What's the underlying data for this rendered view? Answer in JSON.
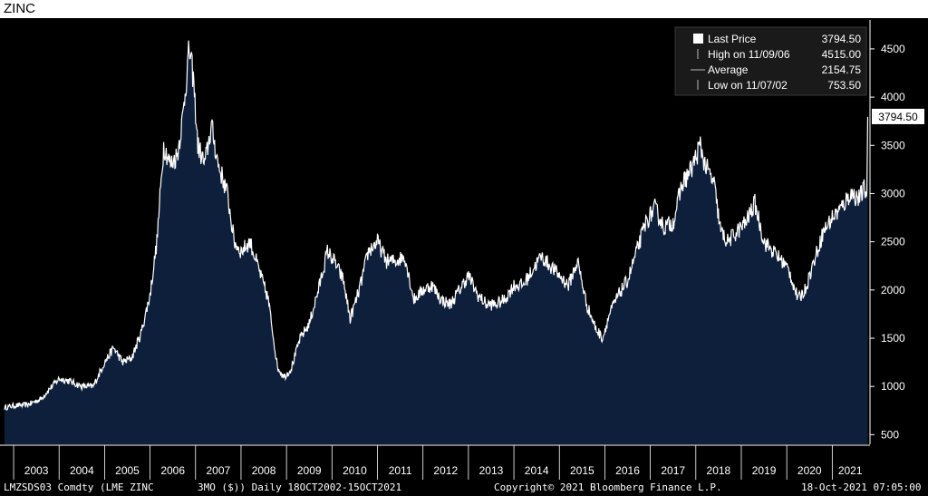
{
  "title": "ZINC",
  "chart_data": {
    "type": "area",
    "title": "ZINC",
    "x_range": [
      "2002-10-18",
      "2021-10-15"
    ],
    "ylim": [
      400,
      4800
    ],
    "y_ticks": [
      500,
      1000,
      1500,
      2000,
      2500,
      3000,
      3500,
      4000,
      4500
    ],
    "x_ticks": [
      "2003",
      "2004",
      "2005",
      "2006",
      "2007",
      "2008",
      "2009",
      "2010",
      "2011",
      "2012",
      "2013",
      "2014",
      "2015",
      "2016",
      "2017",
      "2018",
      "2019",
      "2020",
      "2021"
    ],
    "grid": false,
    "legend_position": "top-right",
    "legend": [
      {
        "label": "Last Price",
        "value": "3794.50"
      },
      {
        "label": "High on 11/09/06",
        "value": "4515.00"
      },
      {
        "label": "Average",
        "value": "2154.75"
      },
      {
        "label": "Low on 11/07/02",
        "value": "753.50"
      }
    ],
    "last_price_label": "3794.50",
    "series": [
      {
        "points": [
          [
            2002.8,
            780
          ],
          [
            2003.0,
            800
          ],
          [
            2003.3,
            810
          ],
          [
            2003.6,
            870
          ],
          [
            2003.8,
            980
          ],
          [
            2004.0,
            1080
          ],
          [
            2004.2,
            1060
          ],
          [
            2004.5,
            1000
          ],
          [
            2004.75,
            1000
          ],
          [
            2005.0,
            1250
          ],
          [
            2005.2,
            1400
          ],
          [
            2005.4,
            1250
          ],
          [
            2005.6,
            1300
          ],
          [
            2005.8,
            1550
          ],
          [
            2006.0,
            1950
          ],
          [
            2006.15,
            2500
          ],
          [
            2006.3,
            3500
          ],
          [
            2006.45,
            3300
          ],
          [
            2006.6,
            3400
          ],
          [
            2006.72,
            3800
          ],
          [
            2006.86,
            4500
          ],
          [
            2006.95,
            4200
          ],
          [
            2007.05,
            3500
          ],
          [
            2007.2,
            3300
          ],
          [
            2007.35,
            3700
          ],
          [
            2007.5,
            3300
          ],
          [
            2007.7,
            3000
          ],
          [
            2007.85,
            2500
          ],
          [
            2008.0,
            2400
          ],
          [
            2008.2,
            2500
          ],
          [
            2008.4,
            2200
          ],
          [
            2008.6,
            1900
          ],
          [
            2008.8,
            1200
          ],
          [
            2008.95,
            1100
          ],
          [
            2009.1,
            1180
          ],
          [
            2009.3,
            1500
          ],
          [
            2009.5,
            1650
          ],
          [
            2009.7,
            2000
          ],
          [
            2009.9,
            2400
          ],
          [
            2010.05,
            2300
          ],
          [
            2010.25,
            2100
          ],
          [
            2010.4,
            1700
          ],
          [
            2010.6,
            2000
          ],
          [
            2010.8,
            2400
          ],
          [
            2011.0,
            2500
          ],
          [
            2011.2,
            2300
          ],
          [
            2011.4,
            2300
          ],
          [
            2011.6,
            2350
          ],
          [
            2011.8,
            1900
          ],
          [
            2012.0,
            2000
          ],
          [
            2012.2,
            2050
          ],
          [
            2012.4,
            1900
          ],
          [
            2012.6,
            1850
          ],
          [
            2012.8,
            2000
          ],
          [
            2013.0,
            2150
          ],
          [
            2013.2,
            1950
          ],
          [
            2013.4,
            1850
          ],
          [
            2013.6,
            1850
          ],
          [
            2013.8,
            1900
          ],
          [
            2014.0,
            2050
          ],
          [
            2014.2,
            2050
          ],
          [
            2014.4,
            2200
          ],
          [
            2014.6,
            2350
          ],
          [
            2014.8,
            2250
          ],
          [
            2015.0,
            2150
          ],
          [
            2015.2,
            2050
          ],
          [
            2015.4,
            2300
          ],
          [
            2015.6,
            1850
          ],
          [
            2015.8,
            1600
          ],
          [
            2015.95,
            1500
          ],
          [
            2016.1,
            1750
          ],
          [
            2016.3,
            1950
          ],
          [
            2016.5,
            2100
          ],
          [
            2016.7,
            2400
          ],
          [
            2016.9,
            2700
          ],
          [
            2017.1,
            2850
          ],
          [
            2017.3,
            2650
          ],
          [
            2017.5,
            2700
          ],
          [
            2017.7,
            3100
          ],
          [
            2017.9,
            3250
          ],
          [
            2018.1,
            3500
          ],
          [
            2018.2,
            3300
          ],
          [
            2018.4,
            3100
          ],
          [
            2018.55,
            2600
          ],
          [
            2018.7,
            2500
          ],
          [
            2018.9,
            2600
          ],
          [
            2019.1,
            2700
          ],
          [
            2019.3,
            2900
          ],
          [
            2019.5,
            2500
          ],
          [
            2019.7,
            2400
          ],
          [
            2019.9,
            2300
          ],
          [
            2020.05,
            2200
          ],
          [
            2020.25,
            1900
          ],
          [
            2020.4,
            2000
          ],
          [
            2020.6,
            2300
          ],
          [
            2020.8,
            2600
          ],
          [
            2021.0,
            2750
          ],
          [
            2021.2,
            2850
          ],
          [
            2021.4,
            3000
          ],
          [
            2021.6,
            2950
          ],
          [
            2021.7,
            3050
          ],
          [
            2021.76,
            3000
          ],
          [
            2021.78,
            3794.5
          ]
        ]
      }
    ]
  },
  "footer": {
    "left": "LMZSDS03 Comdty (LME ZINC",
    "middle": "3MO ($))  Daily 18OCT2002-15OCT2021",
    "copyright": "Copyright© 2021 Bloomberg Finance L.P.",
    "timestamp": "18-Oct-2021 07:05:00"
  },
  "colors": {
    "background": "#000000",
    "area_fill": "#0e1f3c",
    "line": "#ffffff",
    "text": "#ffffff"
  }
}
